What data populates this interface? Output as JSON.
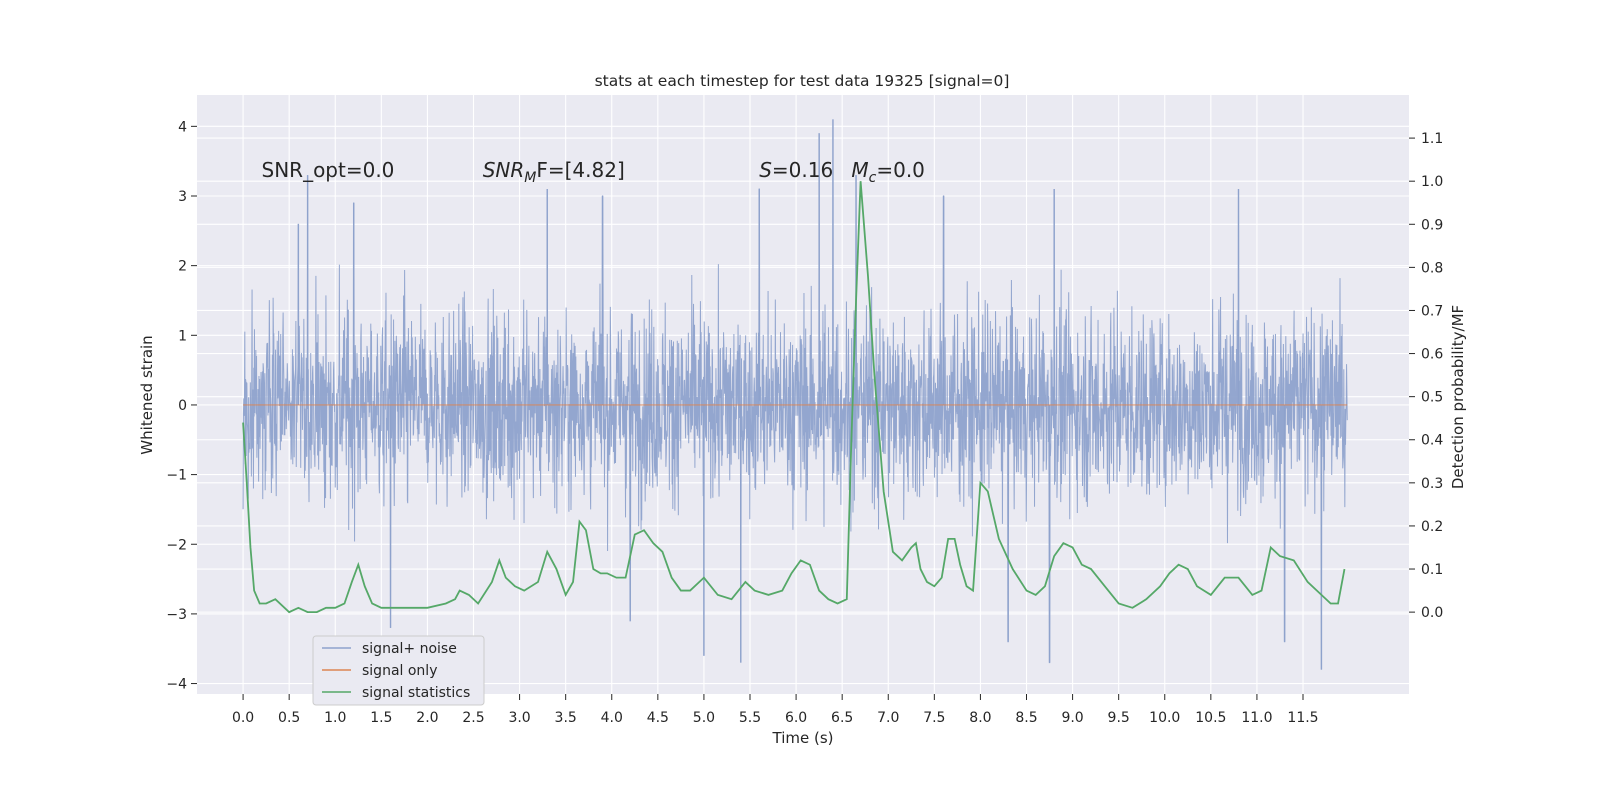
{
  "chart_data": {
    "type": "line",
    "title": "stats at each timestep for test data 19325 [signal=0]",
    "xlabel": "Time (s)",
    "ylabel": "Whitened strain",
    "y2label": "Detection probability/MF",
    "xlim": [
      -0.5,
      12.65
    ],
    "ylim": [
      -4.15,
      4.45
    ],
    "y2lim": [
      -0.19,
      1.2
    ],
    "x_ticks": [
      0.0,
      0.5,
      1.0,
      1.5,
      2.0,
      2.5,
      3.0,
      3.5,
      4.0,
      4.5,
      5.0,
      5.5,
      6.0,
      6.5,
      7.0,
      7.5,
      8.0,
      8.5,
      9.0,
      9.5,
      10.0,
      10.5,
      11.0,
      11.5
    ],
    "x_tick_labels": [
      "0.0",
      "0.5",
      "1.0",
      "1.5",
      "2.0",
      "2.5",
      "3.0",
      "3.5",
      "4.0",
      "4.5",
      "5.0",
      "5.5",
      "6.0",
      "6.5",
      "7.0",
      "7.5",
      "8.0",
      "8.5",
      "9.0",
      "9.5",
      "10.0",
      "10.5",
      "11.0",
      "11.5"
    ],
    "y_ticks": [
      -4,
      -3,
      -2,
      -1,
      0,
      1,
      2,
      3,
      4
    ],
    "y_tick_labels": [
      "−4",
      "−3",
      "−2",
      "−1",
      "0",
      "1",
      "2",
      "3",
      "4"
    ],
    "y2_ticks": [
      0.0,
      0.1,
      0.2,
      0.3,
      0.4,
      0.5,
      0.6,
      0.7,
      0.8,
      0.9,
      1.0,
      1.1
    ],
    "y2_tick_labels": [
      "0.0",
      "0.1",
      "0.2",
      "0.3",
      "0.4",
      "0.5",
      "0.6",
      "0.7",
      "0.8",
      "0.9",
      "1.0",
      "1.1"
    ],
    "grid": true,
    "legend_position": "lower-left",
    "series": [
      {
        "name": "signal+ noise",
        "axis": "left",
        "color": "#8ea2cc",
        "style": "dense noise trace, bulk about ±1.4, extremes about +4.1 / −3.8",
        "t_range": [
          0.0,
          11.98
        ],
        "peaks": [
          {
            "x": 0.6,
            "y": 2.6
          },
          {
            "x": 0.7,
            "y": 3.3
          },
          {
            "x": 1.2,
            "y": 2.9
          },
          {
            "x": 3.3,
            "y": 3.1
          },
          {
            "x": 3.9,
            "y": 3.0
          },
          {
            "x": 5.6,
            "y": 3.1
          },
          {
            "x": 6.25,
            "y": 3.9
          },
          {
            "x": 6.4,
            "y": 4.1
          },
          {
            "x": 6.65,
            "y": 3.3
          },
          {
            "x": 7.6,
            "y": 3.0
          },
          {
            "x": 8.8,
            "y": 3.1
          },
          {
            "x": 10.8,
            "y": 3.1
          },
          {
            "x": 1.6,
            "y": -3.2
          },
          {
            "x": 4.2,
            "y": -3.1
          },
          {
            "x": 5.0,
            "y": -3.6
          },
          {
            "x": 5.4,
            "y": -3.7
          },
          {
            "x": 8.3,
            "y": -3.4
          },
          {
            "x": 8.75,
            "y": -3.7
          },
          {
            "x": 11.3,
            "y": -3.4
          },
          {
            "x": 11.7,
            "y": -3.8
          }
        ]
      },
      {
        "name": "signal only",
        "axis": "left",
        "color": "#dd8452",
        "t_range": [
          0.0,
          11.98
        ],
        "x": [
          0.0,
          11.98
        ],
        "y": [
          0.0,
          0.0
        ]
      },
      {
        "name": "signal statistics",
        "axis": "right",
        "color": "#55a868",
        "x": [
          0.0,
          0.04,
          0.08,
          0.12,
          0.18,
          0.25,
          0.35,
          0.5,
          0.6,
          0.7,
          0.8,
          0.9,
          1.0,
          1.1,
          1.18,
          1.25,
          1.32,
          1.4,
          1.5,
          1.7,
          2.0,
          2.2,
          2.3,
          2.35,
          2.45,
          2.55,
          2.7,
          2.78,
          2.85,
          2.95,
          3.05,
          3.2,
          3.3,
          3.4,
          3.5,
          3.58,
          3.65,
          3.72,
          3.8,
          3.88,
          3.95,
          4.05,
          4.15,
          4.25,
          4.35,
          4.45,
          4.55,
          4.65,
          4.75,
          4.85,
          5.0,
          5.15,
          5.3,
          5.45,
          5.55,
          5.7,
          5.85,
          5.95,
          6.05,
          6.15,
          6.25,
          6.35,
          6.45,
          6.55,
          6.6,
          6.65,
          6.7,
          6.78,
          6.85,
          6.95,
          7.05,
          7.15,
          7.25,
          7.3,
          7.35,
          7.42,
          7.5,
          7.58,
          7.65,
          7.72,
          7.78,
          7.85,
          7.92,
          8.0,
          8.08,
          8.2,
          8.35,
          8.5,
          8.6,
          8.7,
          8.8,
          8.9,
          9.0,
          9.1,
          9.2,
          9.35,
          9.5,
          9.65,
          9.8,
          9.95,
          10.05,
          10.15,
          10.25,
          10.35,
          10.5,
          10.65,
          10.8,
          10.95,
          11.05,
          11.15,
          11.25,
          11.4,
          11.55,
          11.7,
          11.8,
          11.88,
          11.95
        ],
        "y": [
          0.44,
          0.3,
          0.15,
          0.05,
          0.02,
          0.02,
          0.03,
          0.0,
          0.01,
          0.0,
          0.0,
          0.01,
          0.01,
          0.02,
          0.07,
          0.11,
          0.06,
          0.02,
          0.01,
          0.01,
          0.01,
          0.02,
          0.03,
          0.05,
          0.04,
          0.02,
          0.07,
          0.12,
          0.08,
          0.06,
          0.05,
          0.07,
          0.14,
          0.1,
          0.04,
          0.07,
          0.21,
          0.19,
          0.1,
          0.09,
          0.09,
          0.08,
          0.08,
          0.18,
          0.19,
          0.16,
          0.14,
          0.08,
          0.05,
          0.05,
          0.08,
          0.04,
          0.03,
          0.07,
          0.05,
          0.04,
          0.05,
          0.09,
          0.12,
          0.11,
          0.05,
          0.03,
          0.02,
          0.03,
          0.4,
          0.72,
          1.0,
          0.78,
          0.55,
          0.28,
          0.14,
          0.12,
          0.15,
          0.16,
          0.1,
          0.07,
          0.06,
          0.08,
          0.17,
          0.17,
          0.11,
          0.06,
          0.05,
          0.3,
          0.28,
          0.17,
          0.1,
          0.05,
          0.04,
          0.06,
          0.13,
          0.16,
          0.15,
          0.11,
          0.1,
          0.06,
          0.02,
          0.01,
          0.03,
          0.06,
          0.09,
          0.11,
          0.1,
          0.06,
          0.04,
          0.08,
          0.08,
          0.04,
          0.05,
          0.15,
          0.13,
          0.12,
          0.07,
          0.04,
          0.02,
          0.02,
          0.1
        ]
      }
    ],
    "annotations": [
      {
        "kind": "plain",
        "text": "SNR_opt=0.0",
        "x": 0.2,
        "y": 3.27
      },
      {
        "kind": "math",
        "base": "SNR",
        "sub": "M",
        "rest": "F=[4.82]",
        "x": 2.6,
        "y": 3.27
      },
      {
        "kind": "math",
        "base": "S",
        "sub": "",
        "rest": "=0.16",
        "x": 5.6,
        "y": 3.27
      },
      {
        "kind": "math",
        "base": "M",
        "sub": "c",
        "rest": "=0.0",
        "x": 6.6,
        "y": 3.27
      }
    ]
  }
}
